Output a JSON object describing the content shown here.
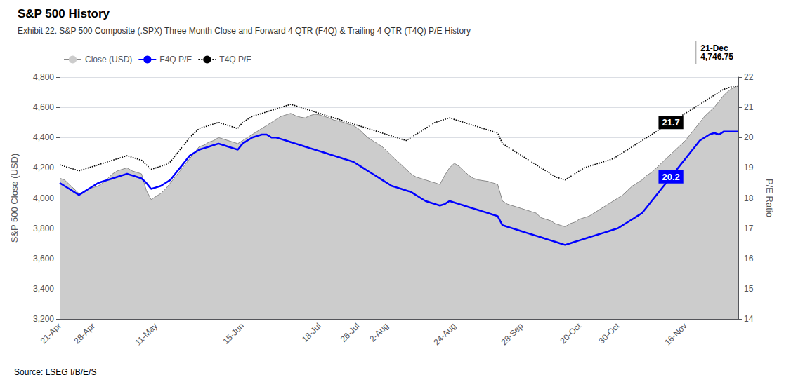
{
  "chart_data": {
    "type": "line",
    "title": "S&P 500 History",
    "subtitle": "Exhibit 22. S&P 500 Composite (.SPX) Three Month Close and Forward 4 QTR (F4Q) & Trailing 4 QTR (T4Q) P/E History",
    "source": "Source: LSEG I/B/E/S",
    "ylabel": "S&P 500 Close (USD)",
    "y2label": "P/E Ratio",
    "ylim": [
      3200,
      4800
    ],
    "yticks": [
      {
        "value": 3200,
        "label": "3,200"
      },
      {
        "value": 3400,
        "label": "3,400"
      },
      {
        "value": 3600,
        "label": "3,600"
      },
      {
        "value": 3800,
        "label": "3,800"
      },
      {
        "value": 4000,
        "label": "4,000"
      },
      {
        "value": 4200,
        "label": "4,200"
      },
      {
        "value": 4400,
        "label": "4,400"
      },
      {
        "value": 4600,
        "label": "4,600"
      },
      {
        "value": 4800,
        "label": "4,800"
      }
    ],
    "y2lim": [
      14,
      22
    ],
    "y2ticks": [
      14,
      15,
      16,
      17,
      18,
      19,
      20,
      21,
      22
    ],
    "grid": true,
    "legend": "upper left",
    "categories": [
      "21-Apr",
      null,
      null,
      null,
      null,
      null,
      null,
      "28-Apr",
      null,
      null,
      null,
      null,
      null,
      null,
      null,
      null,
      null,
      null,
      null,
      null,
      "11-May",
      null,
      null,
      null,
      null,
      null,
      null,
      null,
      null,
      null,
      null,
      null,
      null,
      null,
      null,
      null,
      null,
      null,
      "15-Jun",
      null,
      null,
      null,
      null,
      null,
      null,
      null,
      null,
      null,
      null,
      null,
      null,
      null,
      null,
      null,
      "18-Jul",
      null,
      null,
      null,
      null,
      null,
      null,
      null,
      "26-Jul",
      null,
      null,
      null,
      null,
      null,
      "2-Aug",
      null,
      null,
      null,
      null,
      null,
      null,
      null,
      null,
      null,
      null,
      null,
      null,
      null,
      "24-Aug",
      null,
      null,
      null,
      null,
      null,
      null,
      null,
      null,
      null,
      null,
      null,
      null,
      null,
      "28-Sep",
      null,
      null,
      null,
      null,
      null,
      null,
      null,
      null,
      null,
      null,
      null,
      "20-Oct",
      null,
      null,
      null,
      null,
      null,
      null,
      null,
      "30-Oct",
      null,
      null,
      null,
      null,
      null,
      null,
      null,
      null,
      null,
      null,
      null,
      null,
      null,
      "16-Nov",
      null,
      null,
      null,
      null,
      null,
      null,
      null,
      null,
      null,
      null,
      null
    ],
    "series": [
      {
        "name": "Close (USD)",
        "type": "area",
        "color": "#cccccc",
        "values": [
          4131,
          4120,
          4090,
          4060,
          4030,
          4040,
          4060,
          4070,
          4080,
          4100,
          4130,
          4160,
          4180,
          4190,
          4200,
          4180,
          4170,
          4160,
          4050,
          3990,
          4010,
          4030,
          4060,
          4100,
          4140,
          4180,
          4220,
          4260,
          4300,
          4340,
          4350,
          4370,
          4380,
          4400,
          4390,
          4380,
          4370,
          4360,
          4380,
          4400,
          4420,
          4440,
          4460,
          4480,
          4500,
          4520,
          4540,
          4550,
          4560,
          4545,
          4535,
          4530,
          4545,
          4555,
          4550,
          4540,
          4530,
          4515,
          4510,
          4500,
          4490,
          4480,
          4460,
          4430,
          4400,
          4380,
          4360,
          4340,
          4310,
          4280,
          4250,
          4220,
          4190,
          4160,
          4140,
          4130,
          4120,
          4110,
          4100,
          4090,
          4150,
          4200,
          4230,
          4210,
          4180,
          4150,
          4130,
          4120,
          4115,
          4110,
          4100,
          4090,
          3980,
          3960,
          3950,
          3940,
          3930,
          3920,
          3910,
          3900,
          3870,
          3860,
          3850,
          3830,
          3820,
          3810,
          3830,
          3840,
          3860,
          3870,
          3880,
          3900,
          3920,
          3940,
          3960,
          3980,
          4000,
          4020,
          4050,
          4080,
          4100,
          4120,
          4150,
          4170,
          4200,
          4230,
          4260,
          4290,
          4320,
          4350,
          4380,
          4420,
          4460,
          4500,
          4540,
          4570,
          4600,
          4640,
          4680,
          4710,
          4730,
          4747
        ]
      },
      {
        "name": "F4Q P/E",
        "type": "line",
        "axis": "y2",
        "color": "#0000FF",
        "line_style": "solid",
        "values": [
          18.5,
          18.4,
          18.3,
          18.2,
          18.1,
          18.2,
          18.3,
          18.4,
          18.5,
          18.55,
          18.6,
          18.65,
          18.7,
          18.75,
          18.8,
          18.75,
          18.7,
          18.65,
          18.5,
          18.3,
          18.35,
          18.4,
          18.5,
          18.6,
          18.8,
          19.0,
          19.2,
          19.4,
          19.5,
          19.6,
          19.65,
          19.7,
          19.75,
          19.8,
          19.75,
          19.7,
          19.65,
          19.6,
          19.8,
          19.9,
          20.0,
          20.05,
          20.1,
          20.1,
          20.0,
          20.0,
          19.95,
          19.9,
          19.85,
          19.8,
          19.75,
          19.7,
          19.65,
          19.6,
          19.55,
          19.5,
          19.45,
          19.4,
          19.35,
          19.3,
          19.25,
          19.2,
          19.1,
          19.0,
          18.9,
          18.8,
          18.7,
          18.6,
          18.5,
          18.4,
          18.35,
          18.3,
          18.25,
          18.2,
          18.1,
          18.0,
          17.9,
          17.85,
          17.8,
          17.75,
          17.8,
          17.9,
          17.85,
          17.8,
          17.75,
          17.7,
          17.65,
          17.6,
          17.55,
          17.5,
          17.45,
          17.4,
          17.1,
          17.05,
          17.0,
          16.95,
          16.9,
          16.85,
          16.8,
          16.75,
          16.7,
          16.65,
          16.6,
          16.55,
          16.5,
          16.45,
          16.5,
          16.55,
          16.6,
          16.65,
          16.7,
          16.75,
          16.8,
          16.85,
          16.9,
          16.95,
          17.0,
          17.1,
          17.2,
          17.3,
          17.4,
          17.5,
          17.7,
          17.9,
          18.1,
          18.3,
          18.5,
          18.7,
          18.9,
          19.1,
          19.3,
          19.5,
          19.7,
          19.9,
          20.0,
          20.1,
          20.15,
          20.1,
          20.2,
          20.2,
          20.2,
          20.2
        ]
      },
      {
        "name": "T4Q P/E",
        "type": "line",
        "axis": "y2",
        "color": "#000000",
        "line_style": "dotted",
        "values": [
          19.1,
          19.05,
          19.0,
          18.95,
          18.9,
          18.95,
          19.0,
          19.05,
          19.1,
          19.15,
          19.2,
          19.25,
          19.3,
          19.35,
          19.4,
          19.35,
          19.3,
          19.25,
          19.1,
          18.95,
          19.0,
          19.05,
          19.1,
          19.2,
          19.4,
          19.6,
          19.8,
          20.0,
          20.15,
          20.3,
          20.35,
          20.4,
          20.45,
          20.5,
          20.45,
          20.4,
          20.35,
          20.3,
          20.5,
          20.6,
          20.7,
          20.75,
          20.8,
          20.85,
          20.9,
          20.95,
          21.0,
          21.05,
          21.1,
          21.05,
          21.0,
          20.95,
          20.9,
          20.85,
          20.8,
          20.75,
          20.7,
          20.65,
          20.6,
          20.55,
          20.5,
          20.45,
          20.4,
          20.35,
          20.3,
          20.25,
          20.2,
          20.15,
          20.1,
          20.05,
          20.0,
          19.95,
          19.9,
          20.0,
          20.1,
          20.2,
          20.3,
          20.4,
          20.5,
          20.55,
          20.6,
          20.65,
          20.6,
          20.55,
          20.5,
          20.45,
          20.4,
          20.35,
          20.3,
          20.25,
          20.2,
          20.15,
          19.8,
          19.7,
          19.6,
          19.5,
          19.4,
          19.3,
          19.2,
          19.1,
          19.0,
          18.9,
          18.8,
          18.7,
          18.65,
          18.6,
          18.7,
          18.8,
          18.9,
          19.0,
          19.05,
          19.1,
          19.15,
          19.2,
          19.25,
          19.3,
          19.4,
          19.5,
          19.6,
          19.7,
          19.8,
          19.9,
          20.0,
          20.1,
          20.2,
          20.3,
          20.4,
          20.5,
          20.6,
          20.7,
          20.8,
          20.9,
          21.0,
          21.1,
          21.2,
          21.3,
          21.4,
          21.5,
          21.6,
          21.65,
          21.7,
          21.7
        ]
      }
    ],
    "annotations": [
      {
        "text": "21-Dec\n4,746.75"
      },
      {
        "text": "21.7",
        "series": "T4Q P/E"
      },
      {
        "text": "20.2",
        "series": "F4Q P/E"
      }
    ]
  }
}
